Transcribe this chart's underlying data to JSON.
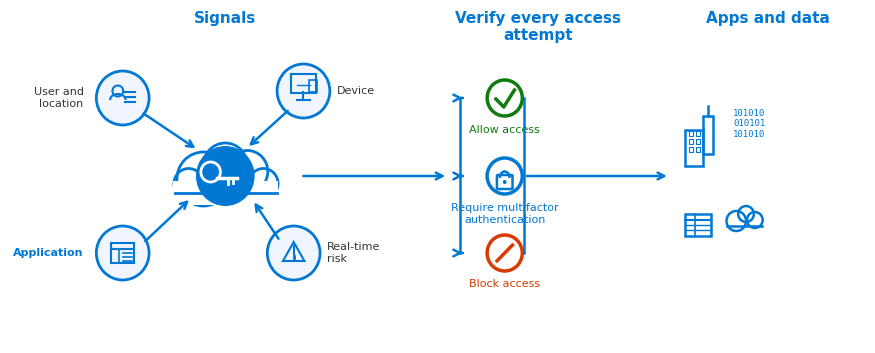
{
  "bg_color": "#ffffff",
  "blue": "#0078d4",
  "green": "#107c10",
  "orange": "#d83b01",
  "title_signals": "Signals",
  "title_verify": "Verify every access\nattempt",
  "title_apps": "Apps and data",
  "label_user": "User and\nlocation",
  "label_device": "Device",
  "label_application": "Application",
  "label_risk": "Real-time\nrisk",
  "label_allow": "Allow access",
  "label_mfa": "Require multifactor\nauthentication",
  "label_block": "Block access",
  "binary_text": "101010\n010101\n101010"
}
